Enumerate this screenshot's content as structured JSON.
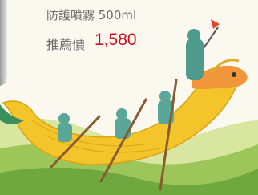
{
  "product": {
    "name": "防護噴霧 500ml",
    "price_label": "推薦價",
    "price": "1,580"
  }
}
